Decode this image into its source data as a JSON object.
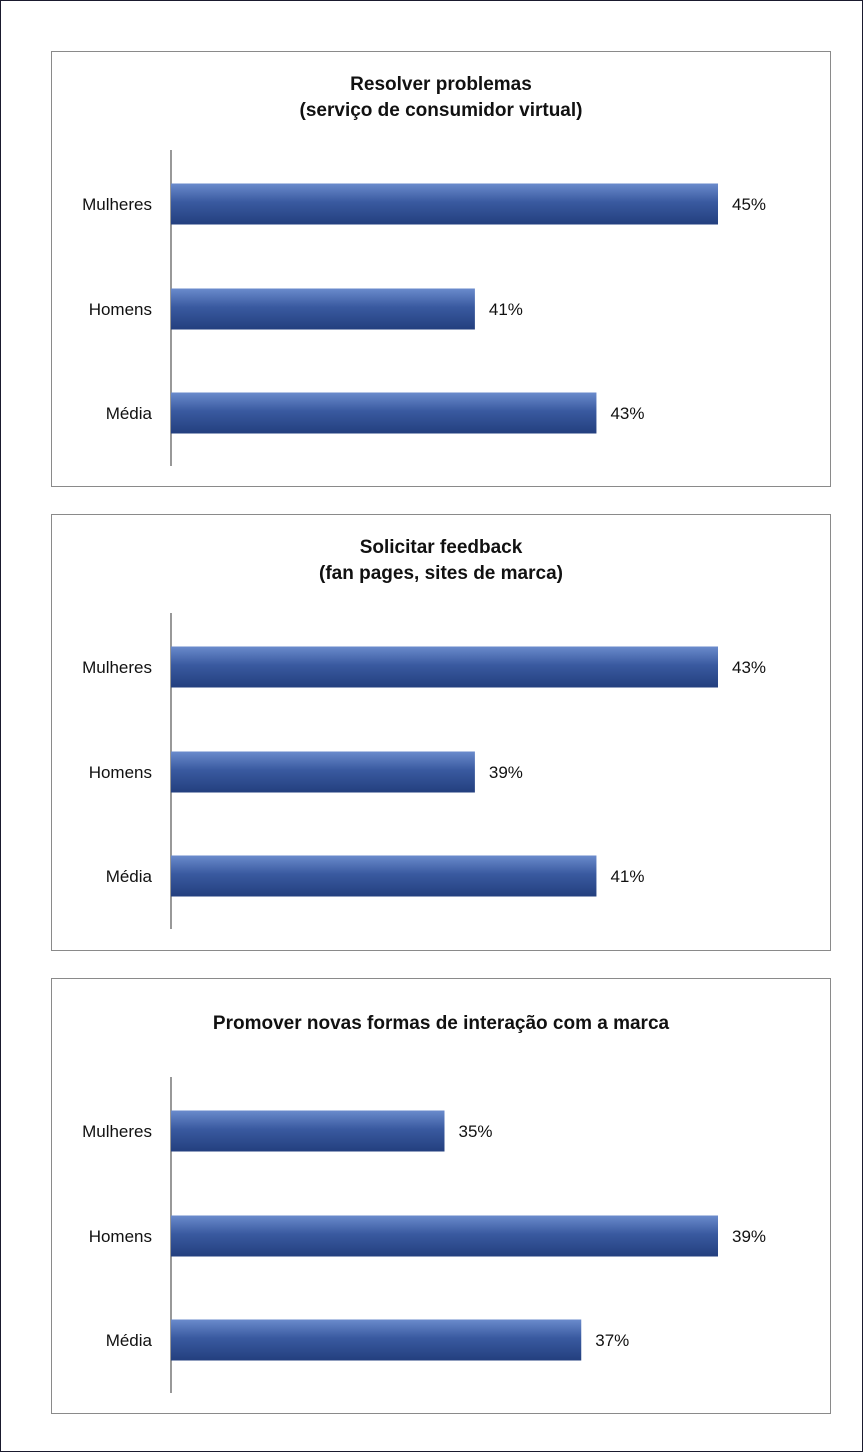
{
  "chart_data": [
    {
      "type": "bar",
      "orientation": "horizontal",
      "title": [
        "Resolver problemas",
        "(serviço de consumidor virtual)"
      ],
      "categories": [
        "Mulheres",
        "Homens",
        "Média"
      ],
      "values": [
        45,
        41,
        43
      ],
      "value_suffix": "%",
      "xlim": [
        36,
        45
      ],
      "grid": false,
      "legend": "none",
      "bar_color": "#3a5aa0"
    },
    {
      "type": "bar",
      "orientation": "horizontal",
      "title": [
        "Solicitar feedback",
        "(fan pages, sites de marca)"
      ],
      "categories": [
        "Mulheres",
        "Homens",
        "Média"
      ],
      "values": [
        43,
        39,
        41
      ],
      "value_suffix": "%",
      "xlim": [
        34,
        43
      ],
      "grid": false,
      "legend": "none",
      "bar_color": "#3a5aa0"
    },
    {
      "type": "bar",
      "orientation": "horizontal",
      "title": [
        "Promover novas formas de interação com a marca"
      ],
      "categories": [
        "Mulheres",
        "Homens",
        "Média"
      ],
      "values": [
        35,
        39,
        37
      ],
      "value_suffix": "%",
      "xlim": [
        31,
        39
      ],
      "grid": false,
      "legend": "none",
      "bar_color": "#3a5aa0"
    }
  ]
}
